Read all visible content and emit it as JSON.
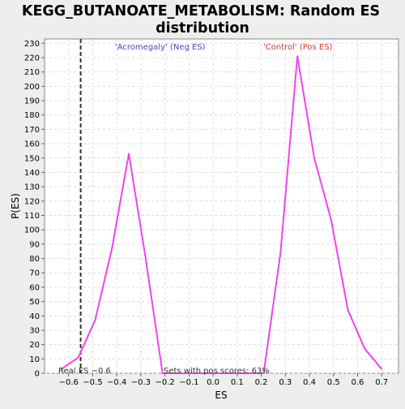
{
  "chart_data": {
    "type": "line",
    "title": "KEGG_BUTANOATE_METABOLISM: Random ES distribution",
    "title_lines": [
      "KEGG_BUTANOATE_METABOLISM: Random ES",
      "distribution"
    ],
    "xlabel": "ES",
    "ylabel": "P(ES)",
    "xlim": [
      -0.7,
      0.77
    ],
    "ylim": [
      0,
      233
    ],
    "x_ticks": [
      -0.6,
      -0.5,
      -0.4,
      -0.3,
      -0.2,
      -0.1,
      0.0,
      0.1,
      0.2,
      0.3,
      0.4,
      0.5,
      0.6,
      0.7
    ],
    "x_tick_labels": [
      "−0.6",
      "−0.5",
      "−0.4",
      "−0.3",
      "−0.2",
      "−0.1",
      "0.0",
      "0.1",
      "0.2",
      "0.3",
      "0.4",
      "0.5",
      "0.6",
      "0.7"
    ],
    "y_ticks": [
      0,
      10,
      20,
      30,
      40,
      50,
      60,
      70,
      80,
      90,
      100,
      110,
      120,
      130,
      140,
      150,
      160,
      170,
      180,
      190,
      200,
      210,
      220,
      230
    ],
    "grid": true,
    "series": [
      {
        "color": "#ee44ee",
        "x": [
          -0.63,
          -0.56,
          -0.49,
          -0.42,
          -0.35,
          -0.28,
          -0.21,
          -0.14,
          -0.07,
          0.0,
          0.07,
          0.14,
          0.21,
          0.28,
          0.35,
          0.42,
          0.49,
          0.56,
          0.63,
          0.7
        ],
        "y": [
          3,
          11,
          37,
          87,
          153,
          80,
          0,
          0,
          0,
          0,
          0,
          0,
          0,
          84,
          221,
          150,
          107,
          44,
          17,
          3
        ]
      }
    ],
    "real_es": {
      "x": -0.55,
      "label": "Real ES −0.6",
      "color": "#333333"
    },
    "annotations": {
      "neg_label": "'Acromegaly' (Neg ES)",
      "neg_color": "#4444cc",
      "pos_label": "'Control' (Pos ES)",
      "pos_color": "#dd3333",
      "pos_scores": "Sets with pos scores: 63%"
    }
  }
}
